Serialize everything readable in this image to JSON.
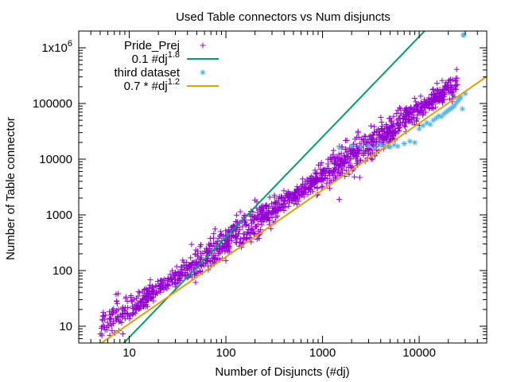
{
  "chart_data": {
    "type": "scatter",
    "title": "Used Table connectors vs Num disjuncts",
    "xlabel": "Number of Disjuncts (#dj)",
    "ylabel": "Number of Table connector",
    "xscale": "log",
    "yscale": "log",
    "xlim": [
      3,
      50000
    ],
    "ylim": [
      5,
      2000000
    ],
    "xticks": [
      {
        "value": 10,
        "label": "10"
      },
      {
        "value": 100,
        "label": "100"
      },
      {
        "value": 1000,
        "label": "1000"
      },
      {
        "value": 10000,
        "label": "10000"
      }
    ],
    "yticks": [
      {
        "value": 10,
        "label": "10"
      },
      {
        "value": 100,
        "label": "100"
      },
      {
        "value": 1000,
        "label": "1000"
      },
      {
        "value": 10000,
        "label": "10000"
      },
      {
        "value": 100000,
        "label": "100000"
      },
      {
        "value": 1000000,
        "label": "1x10",
        "label_sup": "6"
      }
    ],
    "legend_position": "top-left",
    "series": [
      {
        "name": "Pride_Prej",
        "kind": "points",
        "marker": "plus",
        "color": "#9400d3",
        "trend": {
          "x": [
            5,
            25000
          ],
          "y": [
            9,
            230000
          ]
        },
        "spread_decades": 0.22,
        "n_points": 1400
      },
      {
        "name": "0.1 #dj",
        "name_sup": "1.8",
        "kind": "line",
        "formula": {
          "coef": 0.1,
          "exp": 1.8
        },
        "color": "#009e73"
      },
      {
        "name": "third dataset",
        "kind": "points",
        "marker": "star",
        "color": "#56b4e9",
        "points": [
          [
            1500,
            16000
          ],
          [
            2000,
            17000
          ],
          [
            2500,
            16500
          ],
          [
            3000,
            17500
          ],
          [
            3500,
            16000
          ],
          [
            4000,
            18000
          ],
          [
            4500,
            17000
          ],
          [
            5000,
            16500
          ],
          [
            5500,
            18000
          ],
          [
            6000,
            17000
          ],
          [
            7000,
            19000
          ],
          [
            8000,
            21000
          ],
          [
            9000,
            20000
          ],
          [
            10000,
            35000
          ],
          [
            11000,
            40000
          ],
          [
            12000,
            45000
          ],
          [
            13000,
            42000
          ],
          [
            14000,
            50000
          ],
          [
            15000,
            55000
          ],
          [
            16000,
            60000
          ],
          [
            17000,
            58000
          ],
          [
            18000,
            65000
          ],
          [
            19000,
            70000
          ],
          [
            20000,
            75000
          ],
          [
            21000,
            80000
          ],
          [
            22000,
            85000
          ],
          [
            23000,
            90000
          ],
          [
            24000,
            100000
          ],
          [
            25000,
            110000
          ],
          [
            26000,
            120000
          ],
          [
            27000,
            130000
          ],
          [
            28000,
            80000
          ],
          [
            28500,
            1700000
          ],
          [
            29000,
            1700000
          ],
          [
            30000,
            150000
          ]
        ]
      },
      {
        "name": "0.7 * #dj",
        "name_sup": "1.2",
        "kind": "line",
        "formula": {
          "coef": 0.7,
          "exp": 1.2
        },
        "color": "#e69f00"
      }
    ]
  }
}
